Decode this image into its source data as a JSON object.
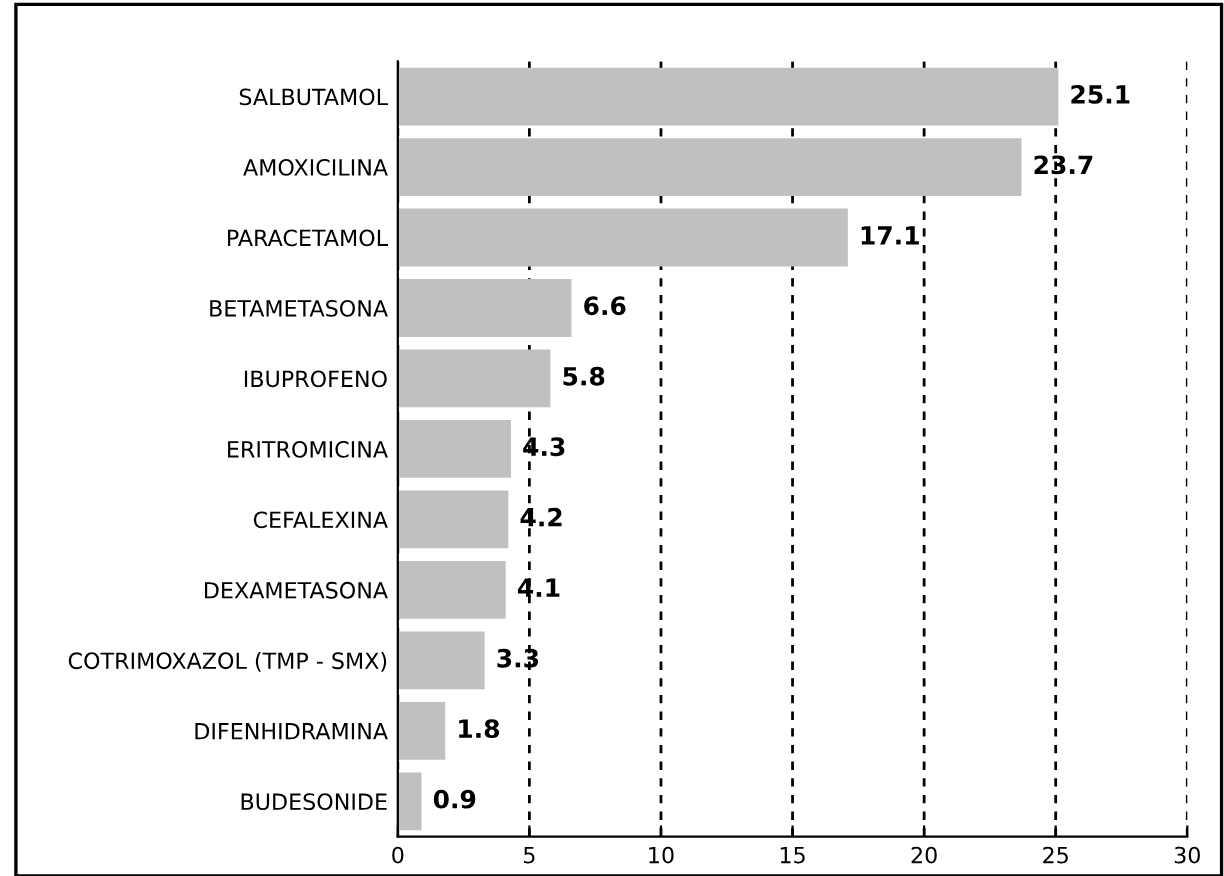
{
  "chart_data": {
    "type": "bar",
    "orientation": "horizontal",
    "categories": [
      "SALBUTAMOL",
      "AMOXICILINA",
      "PARACETAMOL",
      "BETAMETASONA",
      "IBUPROFENO",
      "ERITROMICINA",
      "CEFALEXINA",
      "DEXAMETASONA",
      "COTRIMOXAZOL (TMP - SMX)",
      "DIFENHIDRAMINA",
      "BUDESONIDE"
    ],
    "values": [
      25.1,
      23.7,
      17.1,
      6.6,
      5.8,
      4.3,
      4.2,
      4.1,
      3.3,
      1.8,
      0.9
    ],
    "color": "#c0c0c0",
    "data_labels": true,
    "xlim": [
      0,
      30
    ],
    "xticks": [
      0,
      5,
      10,
      15,
      20,
      25,
      30
    ],
    "grid": "x"
  }
}
